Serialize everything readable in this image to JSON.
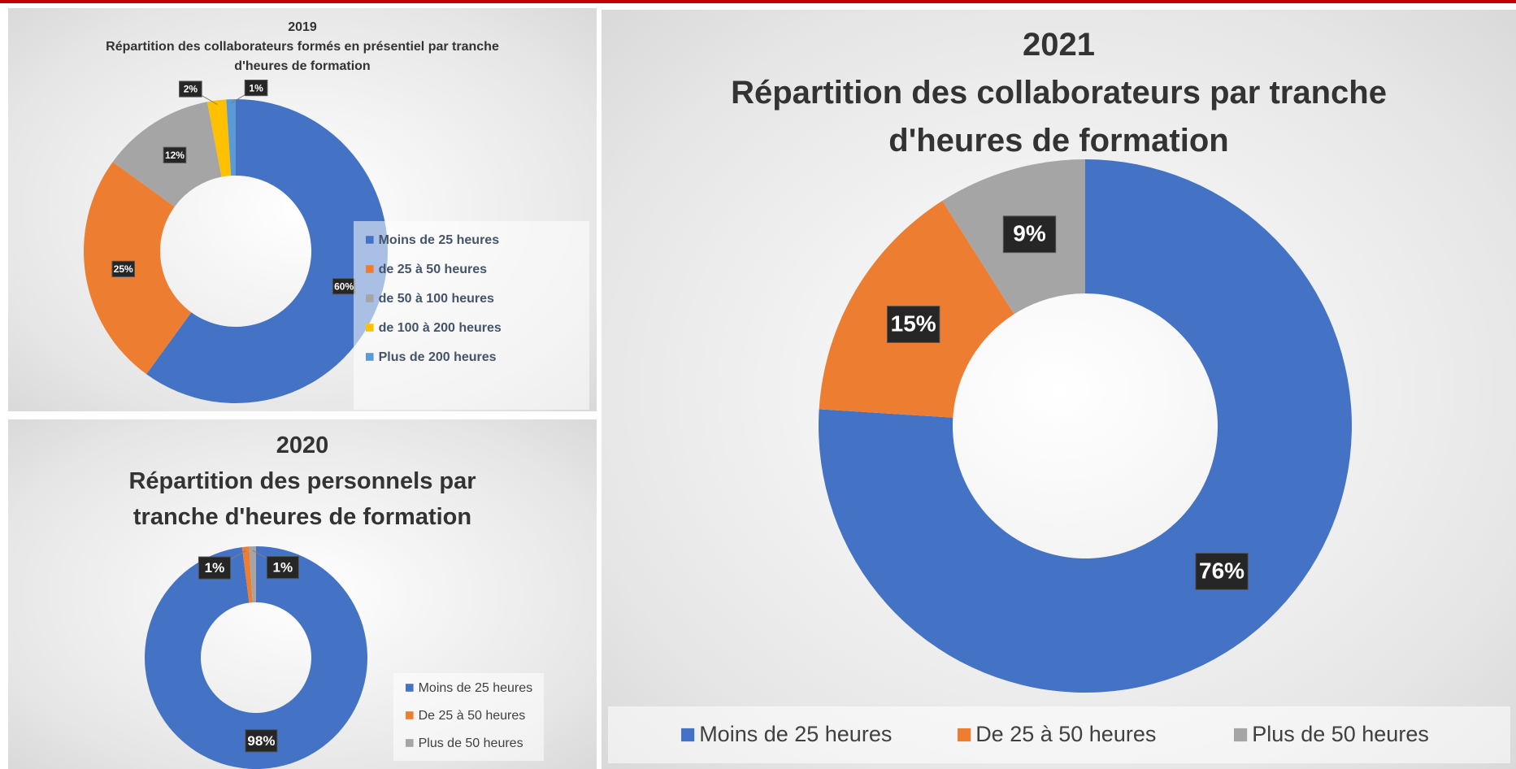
{
  "chart_data": [
    {
      "type": "donut",
      "title": "2019",
      "subtitle": "Répartition des collaborateurs formés en présentiel par tranche d'heures de formation",
      "categories": [
        "Moins de 25 heures",
        "de 25 à 50 heures",
        "de 50 à 100 heures",
        "de 100 à 200 heures",
        "Plus de 200 heures"
      ],
      "values": [
        60,
        25,
        12,
        2,
        1
      ],
      "value_labels": [
        "60%",
        "25%",
        "12%",
        "2%",
        "1%"
      ],
      "colors": [
        "#4472c4",
        "#ed7d31",
        "#a5a5a5",
        "#ffc000",
        "#5b9bd5"
      ],
      "legend": "right"
    },
    {
      "type": "donut",
      "title": "2020",
      "subtitle": "Répartition des personnels par tranche d'heures de formation",
      "categories": [
        "Moins de 25 heures",
        "De 25 à 50 heures",
        "Plus de 50 heures"
      ],
      "values": [
        98,
        1,
        1
      ],
      "value_labels": [
        "98%",
        "1%",
        "1%"
      ],
      "colors": [
        "#4472c4",
        "#ed7d31",
        "#a5a5a5"
      ],
      "legend": "right"
    },
    {
      "type": "donut",
      "title": "2021",
      "subtitle": "Répartition des collaborateurs par tranche d'heures de formation",
      "categories": [
        "Moins de 25 heures",
        "De 25 à 50 heures",
        "Plus de 50 heures"
      ],
      "values": [
        76,
        15,
        9
      ],
      "value_labels": [
        "76%",
        "15%",
        "9%"
      ],
      "colors": [
        "#4472c4",
        "#ed7d31",
        "#a5a5a5"
      ],
      "legend": "bottom"
    }
  ]
}
